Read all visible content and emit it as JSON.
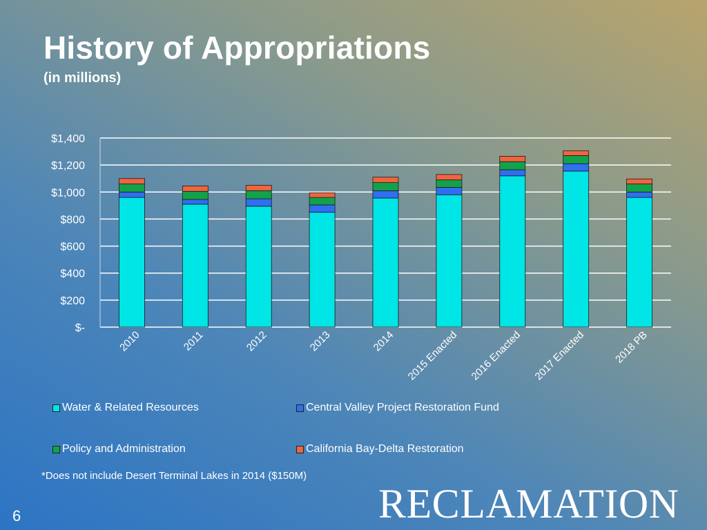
{
  "slide": {
    "title": "History of Appropriations",
    "subtitle": "(in millions)",
    "footnote": "*Does not include Desert Terminal Lakes in 2014 ($150M)",
    "page_number": "6",
    "logo_text": "RECLAMATION"
  },
  "legend": [
    {
      "label": "Water & Related Resources",
      "color": "#00e5e5"
    },
    {
      "label": "Central Valley Project Restoration Fund",
      "color": "#2f6ff0"
    },
    {
      "label": "Policy and Administration",
      "color": "#13a24a"
    },
    {
      "label": "California Bay-Delta Restoration",
      "color": "#f06440"
    }
  ],
  "chart_data": {
    "type": "bar",
    "stacked": true,
    "title": "",
    "xlabel": "",
    "ylabel": "",
    "ylim": [
      0,
      1400
    ],
    "y_ticks": [
      0,
      200,
      400,
      600,
      800,
      1000,
      1200,
      1400
    ],
    "y_tick_labels": [
      "$-",
      "$200",
      "$400",
      "$600",
      "$800",
      "$1,000",
      "$1,200",
      "$1,400"
    ],
    "grid": true,
    "legend_position": "bottom",
    "categories": [
      "2010",
      "2011",
      "2012",
      "2013",
      "2014",
      "2015 Enacted",
      "2016 Enacted",
      "2017 Enacted",
      "2018 PB"
    ],
    "series": [
      {
        "name": "Water & Related Resources",
        "color": "#00e5e5",
        "values": [
          960,
          910,
          895,
          850,
          955,
          980,
          1120,
          1155,
          960
        ]
      },
      {
        "name": "Central Valley Project Restoration Fund",
        "color": "#2f6ff0",
        "values": [
          40,
          35,
          55,
          55,
          55,
          55,
          45,
          55,
          40
        ]
      },
      {
        "name": "Policy and Administration",
        "color": "#13a24a",
        "values": [
          60,
          60,
          60,
          55,
          60,
          55,
          60,
          60,
          60
        ]
      },
      {
        "name": "California Bay-Delta Restoration",
        "color": "#f06440",
        "values": [
          40,
          40,
          40,
          35,
          40,
          40,
          40,
          35,
          37
        ]
      }
    ]
  }
}
